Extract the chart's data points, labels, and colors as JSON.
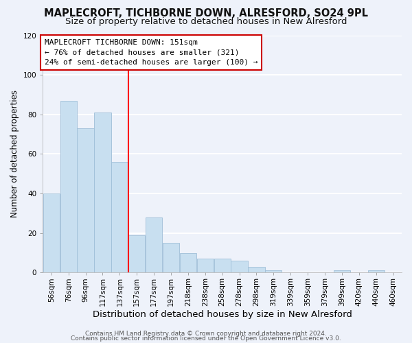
{
  "title": "MAPLECROFT, TICHBORNE DOWN, ALRESFORD, SO24 9PL",
  "subtitle": "Size of property relative to detached houses in New Alresford",
  "xlabel": "Distribution of detached houses by size in New Alresford",
  "ylabel": "Number of detached properties",
  "bar_color": "#c8dff0",
  "bar_edge_color": "#a0bfd8",
  "bins": [
    "56sqm",
    "76sqm",
    "96sqm",
    "117sqm",
    "137sqm",
    "157sqm",
    "177sqm",
    "197sqm",
    "218sqm",
    "238sqm",
    "258sqm",
    "278sqm",
    "298sqm",
    "319sqm",
    "339sqm",
    "359sqm",
    "379sqm",
    "399sqm",
    "420sqm",
    "440sqm",
    "460sqm"
  ],
  "values": [
    40,
    87,
    73,
    81,
    56,
    19,
    28,
    15,
    10,
    7,
    7,
    6,
    3,
    1,
    0,
    0,
    0,
    1,
    0,
    1,
    0
  ],
  "ylim": [
    0,
    120
  ],
  "yticks": [
    0,
    20,
    40,
    60,
    80,
    100,
    120
  ],
  "vline_pos": 4.5,
  "annotation_title": "MAPLECROFT TICHBORNE DOWN: 151sqm",
  "annotation_line1": "← 76% of detached houses are smaller (321)",
  "annotation_line2": "24% of semi-detached houses are larger (100) →",
  "footer1": "Contains HM Land Registry data © Crown copyright and database right 2024.",
  "footer2": "Contains public sector information licensed under the Open Government Licence v3.0.",
  "background_color": "#eef2fa",
  "grid_color": "#ffffff",
  "title_fontsize": 10.5,
  "subtitle_fontsize": 9.5,
  "xlabel_fontsize": 9.5,
  "ylabel_fontsize": 8.5,
  "tick_fontsize": 7.5,
  "annotation_fontsize": 8,
  "footer_fontsize": 6.5
}
